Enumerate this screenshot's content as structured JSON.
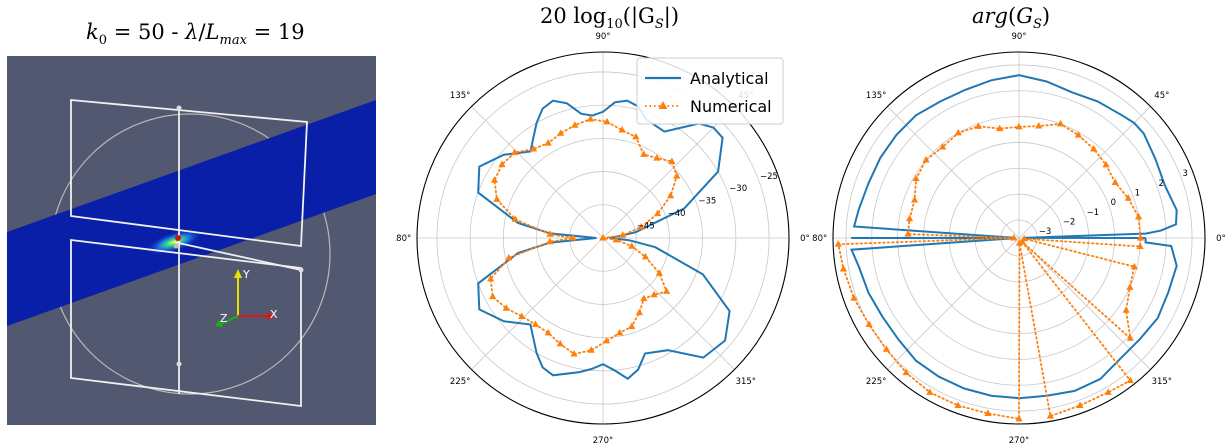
{
  "panels": {
    "left_title": {
      "k0_value": "50",
      "separator": " - ",
      "ratio_value": "19"
    },
    "mid_title": {
      "prefix": "20",
      "func": "log",
      "sub": "10",
      "arg": "|G",
      "arg_sub": "S",
      "suffix": "|)"
    },
    "right_title": {
      "func": "arg",
      "arg": "G",
      "arg_sub": "S"
    }
  },
  "visualization": {
    "background": "#525870",
    "beam_color": "#0a1fa8",
    "axes": {
      "x": "X",
      "y": "Y",
      "z": "Z"
    },
    "axis_colors": {
      "x": "#e01515",
      "y": "#e8e000",
      "z": "#12b512"
    }
  },
  "colors": {
    "analytical": "#1f77b4",
    "numerical": "#ff7f0e"
  },
  "angle_labels": [
    "0°",
    "45°",
    "90°",
    "135°",
    "180°",
    "225°",
    "270°",
    "315°"
  ],
  "chart_data": [
    {
      "type": "line",
      "projection": "polar",
      "title": "20 log10(|G_S|)",
      "angle_unit": "degrees",
      "r_range": [
        -50,
        -22
      ],
      "r_ticks": [
        -45,
        -40,
        -35,
        -30,
        -25
      ],
      "r_tick_labels": [
        "−45",
        "−40",
        "−35",
        "−30",
        "−25"
      ],
      "r_label_angle_deg": 22,
      "legend": {
        "placement": "upper-right",
        "entries": [
          "Analytical",
          "Numerical"
        ]
      },
      "series": [
        {
          "name": "Analytical",
          "style": "solid",
          "theta": [
            0,
            5,
            10,
            20,
            30,
            40,
            45,
            50,
            60,
            70,
            75,
            80,
            85,
            90,
            95,
            100,
            105,
            110,
            115,
            120,
            130,
            140,
            150,
            160,
            170,
            175,
            180,
            185,
            190,
            200,
            210,
            220,
            230,
            240,
            245,
            250,
            260,
            265,
            270,
            275,
            280,
            285,
            290,
            300,
            310,
            320,
            330,
            340,
            350,
            355,
            360
          ],
          "r": [
            -49,
            -48,
            -45,
            -37,
            -30,
            -26.5,
            -26.5,
            -27.5,
            -31.5,
            -31,
            -29.5,
            -29,
            -29.5,
            -31,
            -31.5,
            -31,
            -29,
            -28,
            -28.5,
            -30,
            -33,
            -30.5,
            -28.5,
            -30,
            -37,
            -42,
            -49,
            -42,
            -37,
            -30,
            -28.5,
            -30.5,
            -33,
            -30,
            -28.5,
            -28,
            -29.5,
            -30.2,
            -31,
            -30,
            -28.5,
            -29.5,
            -31.5,
            -30.5,
            -26.5,
            -26,
            -28,
            -34,
            -42,
            -46,
            -49
          ]
        },
        {
          "name": "Numerical",
          "style": "dotted",
          "marker": "triangle",
          "theta": [
            0,
            8,
            16,
            24,
            32,
            40,
            48,
            56,
            64,
            72,
            80,
            88,
            96,
            104,
            112,
            120,
            128,
            136,
            144,
            152,
            160,
            168,
            176,
            180,
            184,
            192,
            200,
            208,
            216,
            224,
            232,
            240,
            248,
            256,
            264,
            272,
            280,
            288,
            296,
            304,
            312,
            320,
            328,
            336,
            344,
            352,
            360
          ],
          "r": [
            -50,
            -47,
            -44,
            -41,
            -38,
            -35.5,
            -34.5,
            -35.5,
            -36,
            -34,
            -33.5,
            -32.5,
            -32,
            -32.5,
            -33,
            -33.5,
            -33,
            -31.5,
            -31.2,
            -31.5,
            -33,
            -36.5,
            -42,
            -45.5,
            -42,
            -35.5,
            -32,
            -31.2,
            -32,
            -33,
            -33.5,
            -33.5,
            -32.8,
            -32,
            -33,
            -34.5,
            -35.5,
            -36,
            -37.5,
            -39,
            -38.5,
            -37.5,
            -40,
            -43,
            -45.5,
            -48,
            -50
          ]
        }
      ]
    },
    {
      "type": "line",
      "projection": "polar",
      "title": "arg(G_S)",
      "angle_unit": "degrees",
      "r_range": [
        -3.7,
        3.5
      ],
      "r_ticks": [
        -3,
        -2,
        -1,
        0,
        1,
        2,
        3
      ],
      "r_tick_labels": [
        "−3",
        "−2",
        "−1",
        "0",
        "1",
        "2",
        "3"
      ],
      "r_label_angle_deg": 22,
      "series": [
        {
          "name": "Analytical",
          "style": "solid",
          "theta": [
            0,
            1,
            2,
            3,
            5,
            10,
            20,
            30,
            40,
            45,
            50,
            60,
            70,
            80,
            90,
            100,
            110,
            120,
            130,
            140,
            150,
            160,
            170,
            176,
            178,
            180,
            182,
            184,
            190,
            200,
            210,
            220,
            230,
            240,
            250,
            260,
            270,
            280,
            290,
            300,
            310,
            320,
            330,
            340,
            350,
            357,
            358,
            359,
            360
          ],
          "r": [
            1.2,
            -3.5,
            1.2,
            1.8,
            2.4,
            2.5,
            2.3,
            2.4,
            2.6,
            2.6,
            2.5,
            2.4,
            2.3,
            2.45,
            2.6,
            2.5,
            2.4,
            2.4,
            2.5,
            2.5,
            2.5,
            2.5,
            2.6,
            2.7,
            -3.5,
            2.8,
            -3.5,
            2.8,
            2.6,
            2.5,
            2.4,
            2.4,
            2.5,
            2.5,
            2.5,
            2.5,
            2.5,
            2.5,
            2.6,
            2.6,
            2.4,
            2.4,
            2.5,
            2.45,
            2.5,
            2.2,
            1.2,
            1.2,
            1.2
          ]
        },
        {
          "name": "Numerical",
          "style": "dotted",
          "marker": "triangle",
          "theta": [
            0,
            10,
            20,
            30,
            40,
            50,
            60,
            70,
            80,
            90,
            100,
            110,
            120,
            130,
            140,
            150,
            160,
            170,
            178,
            180,
            182,
            190,
            200,
            210,
            220,
            230,
            240,
            250,
            260,
            270,
            275,
            280,
            290,
            300,
            308,
            310,
            318,
            326,
            336,
            346,
            352,
            356,
            360
          ],
          "r": [
            1.0,
            1.0,
            0.8,
            0.6,
            0.7,
            0.8,
            0.9,
            1.0,
            0.7,
            0.6,
            0.6,
            0.9,
            1.0,
            0.9,
            1.0,
            0.9,
            0.6,
            0.6,
            0.6,
            -3.5,
            3.3,
            3.2,
            3.1,
            3.0,
            3.0,
            3.1,
            3.2,
            3.2,
            3.2,
            3.3,
            -3.5,
            3.3,
            3.2,
            3.2,
            3.3,
            -3.5,
            2.1,
            1.3,
            1.0,
            0.9,
            -3.5,
            1.0,
            1.0
          ]
        }
      ]
    }
  ]
}
